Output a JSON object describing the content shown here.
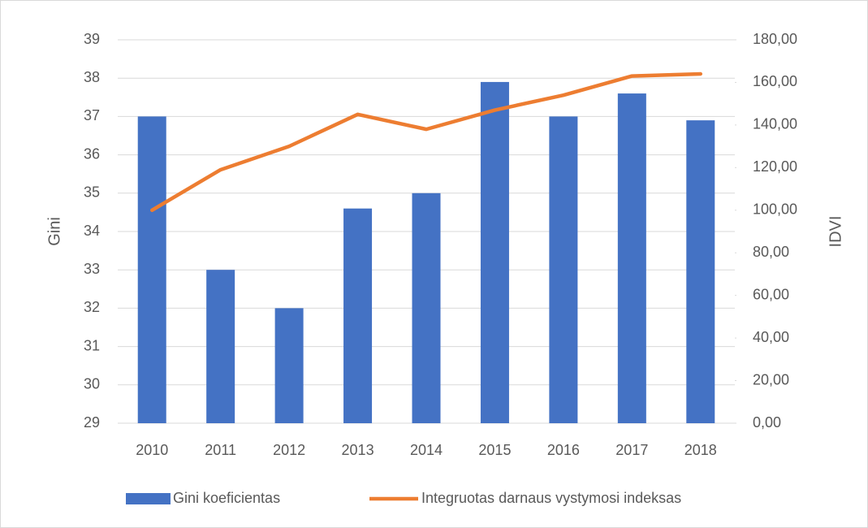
{
  "chart_data": {
    "type": "bar_line",
    "categories": [
      "2010",
      "2011",
      "2012",
      "2013",
      "2014",
      "2015",
      "2016",
      "2017",
      "2018"
    ],
    "series": [
      {
        "name": "Gini koeficientas",
        "color": "#4472c4",
        "type": "bar",
        "axis": "y",
        "values": [
          37,
          33,
          32,
          34.6,
          35,
          37.9,
          37,
          37.6,
          36.9
        ]
      },
      {
        "name": "Integruotas darnaus vystymosi indeksas",
        "color": "#ed7d31",
        "type": "line",
        "axis": "y2",
        "values": [
          100,
          119,
          130,
          145,
          138,
          147,
          154,
          163,
          164
        ]
      }
    ],
    "ylabel": "Gini",
    "y2label": "IDVI",
    "ylim": [
      29,
      39
    ],
    "yticks": [
      29,
      30,
      31,
      32,
      33,
      34,
      35,
      36,
      37,
      38,
      39
    ],
    "y2lim": [
      0,
      180
    ],
    "y2ticks": [
      {
        "value": 0,
        "label": "0,00"
      },
      {
        "value": 20,
        "label": "20,00"
      },
      {
        "value": 40,
        "label": "40,00"
      },
      {
        "value": 60,
        "label": "60,00"
      },
      {
        "value": 80,
        "label": "80,00"
      },
      {
        "value": 100,
        "label": "100,00"
      },
      {
        "value": 120,
        "label": "120,00"
      },
      {
        "value": 140,
        "label": "140,00"
      },
      {
        "value": 160,
        "label": "160,00"
      },
      {
        "value": 180,
        "label": "180,00"
      }
    ],
    "grid": true,
    "legend": "bottom"
  }
}
